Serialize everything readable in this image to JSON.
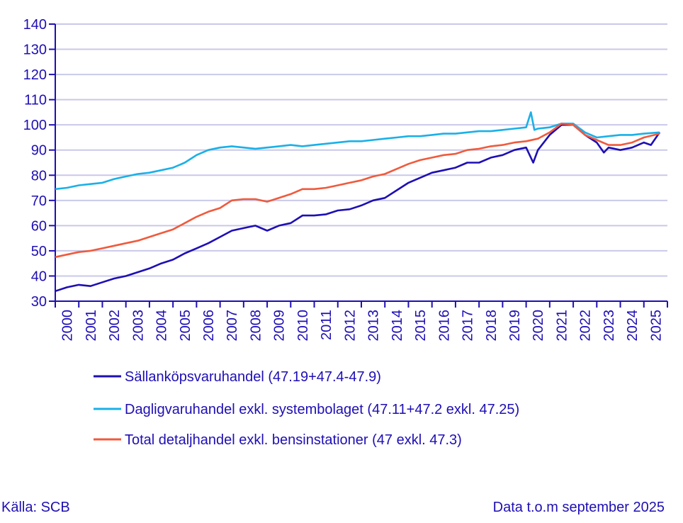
{
  "chart_data": {
    "type": "line",
    "title": "",
    "xlabel": "",
    "ylabel": "",
    "ylim": [
      30,
      140
    ],
    "yticks": [
      30,
      40,
      50,
      60,
      70,
      80,
      90,
      100,
      110,
      120,
      130,
      140
    ],
    "xlim": [
      2000,
      2026
    ],
    "xtick_labels": [
      "2000",
      "2001",
      "2002",
      "2003",
      "2004",
      "2005",
      "2006",
      "2007",
      "2008",
      "2009",
      "2010",
      "2011",
      "2012",
      "2013",
      "2014",
      "2015",
      "2016",
      "2017",
      "2018",
      "2019",
      "2020",
      "2021",
      "2022",
      "2023",
      "2024",
      "2025"
    ],
    "grid": "horizontal",
    "legend_placement": "bottom",
    "series": [
      {
        "name": "Sällanköpsvaruhandel (47.19+47.4-47.9)",
        "color": "#1e0fb4",
        "x": [
          2000,
          2000.5,
          2001,
          2001.5,
          2002,
          2002.5,
          2003,
          2003.5,
          2004,
          2004.5,
          2005,
          2005.5,
          2006,
          2006.5,
          2007,
          2007.5,
          2008,
          2008.5,
          2009,
          2009.5,
          2010,
          2010.5,
          2011,
          2011.5,
          2012,
          2012.5,
          2013,
          2013.5,
          2014,
          2014.5,
          2015,
          2015.5,
          2016,
          2016.5,
          2017,
          2017.5,
          2018,
          2018.5,
          2019,
          2019.5,
          2020,
          2020.3,
          2020.5,
          2021,
          2021.5,
          2022,
          2022.5,
          2023,
          2023.3,
          2023.5,
          2024,
          2024.5,
          2025,
          2025.3,
          2025.67
        ],
        "y": [
          34,
          35.5,
          36.5,
          36,
          37.5,
          39,
          40,
          41.5,
          43,
          45,
          46.5,
          49,
          51,
          53,
          55.5,
          58,
          59,
          60,
          58,
          60,
          61,
          64,
          64,
          64.5,
          66,
          66.5,
          68,
          70,
          71,
          74,
          77,
          79,
          81,
          82,
          83,
          85,
          85,
          87,
          88,
          90,
          91,
          85,
          90,
          96,
          100,
          100,
          96,
          93,
          89,
          91,
          90,
          91,
          93,
          92,
          97
        ]
      },
      {
        "name": "Dagligvaruhandel exkl. systembolaget (47.11+47.2 exkl. 47.25)",
        "color": "#1ab0e8",
        "x": [
          2000,
          2000.5,
          2001,
          2001.5,
          2002,
          2002.5,
          2003,
          2003.5,
          2004,
          2004.5,
          2005,
          2005.5,
          2006,
          2006.5,
          2007,
          2007.5,
          2008,
          2008.5,
          2009,
          2009.5,
          2010,
          2010.5,
          2011,
          2011.5,
          2012,
          2012.5,
          2013,
          2013.5,
          2014,
          2014.5,
          2015,
          2015.5,
          2016,
          2016.5,
          2017,
          2017.5,
          2018,
          2018.5,
          2019,
          2019.5,
          2020,
          2020.2,
          2020.35,
          2020.5,
          2021,
          2021.5,
          2022,
          2022.5,
          2023,
          2023.5,
          2024,
          2024.5,
          2025,
          2025.67
        ],
        "y": [
          74.5,
          75,
          76,
          76.5,
          77,
          78.5,
          79.5,
          80.5,
          81,
          82,
          83,
          85,
          88,
          90,
          91,
          91.5,
          91,
          90.5,
          91,
          91.5,
          92,
          91.5,
          92,
          92.5,
          93,
          93.5,
          93.5,
          94,
          94.5,
          95,
          95.5,
          95.5,
          96,
          96.5,
          96.5,
          97,
          97.5,
          97.5,
          98,
          98.5,
          99,
          105,
          98,
          98.5,
          99,
          100.5,
          100.5,
          97,
          95,
          95.5,
          96,
          96,
          96.5,
          97
        ]
      },
      {
        "name": "Total detaljhandel exkl. bensinstationer (47 exkl. 47.3)",
        "color": "#f05a3c",
        "x": [
          2000,
          2000.5,
          2001,
          2001.5,
          2002,
          2002.5,
          2003,
          2003.5,
          2004,
          2004.5,
          2005,
          2005.5,
          2006,
          2006.5,
          2007,
          2007.5,
          2008,
          2008.5,
          2009,
          2009.5,
          2010,
          2010.5,
          2011,
          2011.5,
          2012,
          2012.5,
          2013,
          2013.5,
          2014,
          2014.5,
          2015,
          2015.5,
          2016,
          2016.5,
          2017,
          2017.5,
          2018,
          2018.5,
          2019,
          2019.5,
          2020,
          2020.5,
          2021,
          2021.5,
          2022,
          2022.5,
          2023,
          2023.5,
          2024,
          2024.5,
          2025,
          2025.67
        ],
        "y": [
          47.5,
          48.5,
          49.5,
          50,
          51,
          52,
          53,
          54,
          55.5,
          57,
          58.5,
          61,
          63.5,
          65.5,
          67,
          70,
          70.5,
          70.5,
          69.5,
          71,
          72.5,
          74.5,
          74.5,
          75,
          76,
          77,
          78,
          79.5,
          80.5,
          82.5,
          84.5,
          86,
          87,
          88,
          88.5,
          90,
          90.5,
          91.5,
          92,
          93,
          93.5,
          94.5,
          97,
          100.5,
          100,
          96,
          94,
          92,
          92,
          93,
          95,
          96.5
        ]
      }
    ]
  },
  "footer": {
    "source": "Källa: SCB",
    "data_note": "Data t.o.m september 2025"
  }
}
